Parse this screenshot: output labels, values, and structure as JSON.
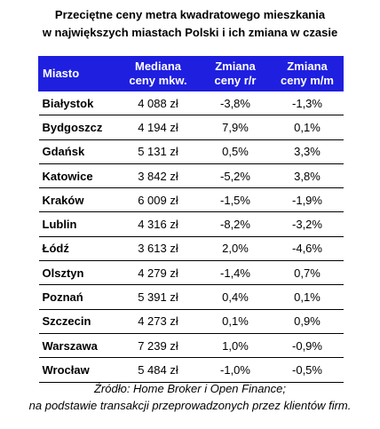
{
  "title": {
    "line1": "Przeciętne ceny metra kwadratowego mieszkania",
    "line2": "w największych miastach Polski i ich zmiana w czasie"
  },
  "source": {
    "line1": "Źródło: Home Broker i Open Finance;",
    "line2": "na podstawie transakcji przeprowadzonych przez klientów firm."
  },
  "colors": {
    "header_bg": "#1f1fe0",
    "header_text": "#ffffff",
    "row_border": "#000000"
  },
  "chart_data": {
    "type": "table",
    "title": "Przeciętne ceny metra kwadratowego mieszkania w największych miastach Polski i ich zmiana w czasie",
    "columns": [
      {
        "line1": "Miasto",
        "line2": ""
      },
      {
        "line1": "Mediana",
        "line2": "ceny mkw."
      },
      {
        "line1": "Zmiana",
        "line2": "ceny r/r"
      },
      {
        "line1": "Zmiana",
        "line2": "ceny m/m"
      }
    ],
    "rows": [
      [
        "Białystok",
        "4 088 zł",
        "-3,8%",
        "-1,3%"
      ],
      [
        "Bydgoszcz",
        "4 194 zł",
        "7,9%",
        "0,1%"
      ],
      [
        "Gdańsk",
        "5 131 zł",
        "0,5%",
        "3,3%"
      ],
      [
        "Katowice",
        "3 842 zł",
        "-5,2%",
        "3,8%"
      ],
      [
        "Kraków",
        "6 009 zł",
        "-1,5%",
        "-1,9%"
      ],
      [
        "Lublin",
        "4 316 zł",
        "-8,2%",
        "-3,2%"
      ],
      [
        "Łódź",
        "3 613 zł",
        "2,0%",
        "-4,6%"
      ],
      [
        "Olsztyn",
        "4 279 zł",
        "-1,4%",
        "0,7%"
      ],
      [
        "Poznań",
        "5 391 zł",
        "0,4%",
        "0,1%"
      ],
      [
        "Szczecin",
        "4 273 zł",
        "0,1%",
        "0,9%"
      ],
      [
        "Warszawa",
        "7 239 zł",
        "1,0%",
        "-0,9%"
      ],
      [
        "Wrocław",
        "5 484 zł",
        "-1,0%",
        "-0,5%"
      ]
    ]
  }
}
